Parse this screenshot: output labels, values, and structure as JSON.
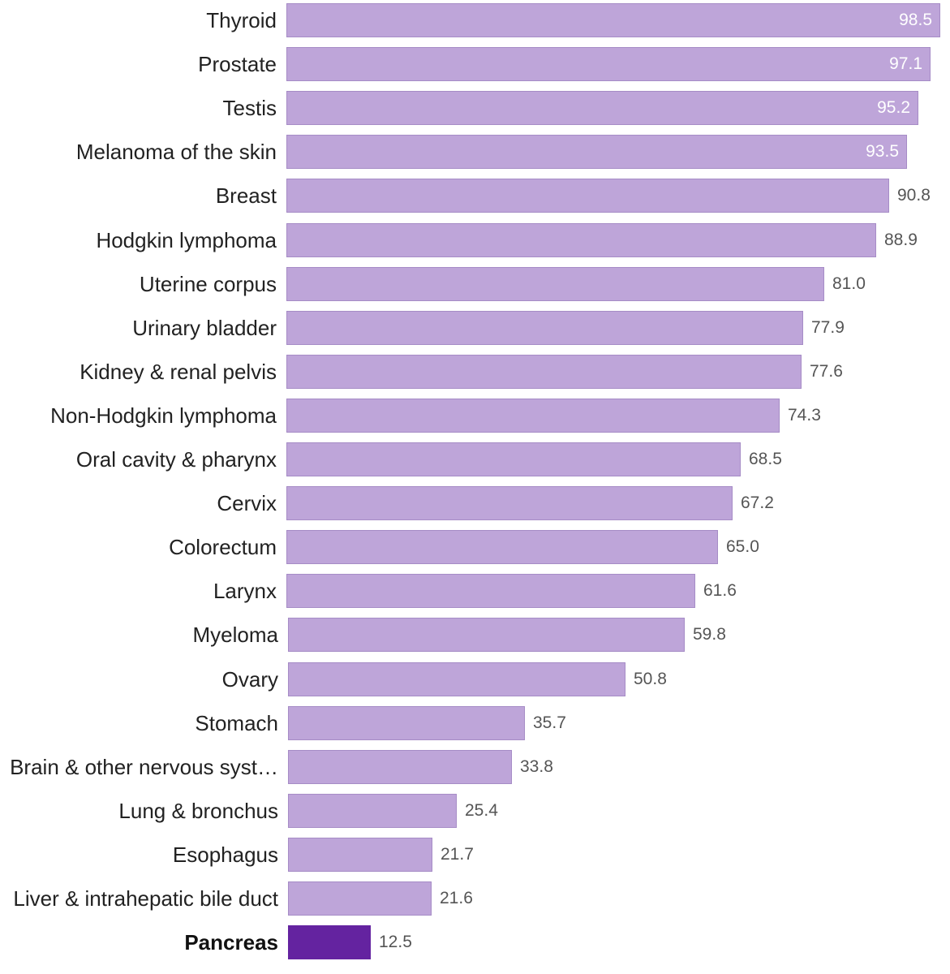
{
  "chart_data": {
    "type": "bar",
    "orientation": "horizontal",
    "categories": [
      "Thyroid",
      "Prostate",
      "Testis",
      "Melanoma of the skin",
      "Breast",
      "Hodgkin lymphoma",
      "Uterine corpus",
      "Urinary bladder",
      "Kidney & renal pelvis",
      "Non-Hodgkin lymphoma",
      "Oral cavity & pharynx",
      "Cervix",
      "Colorectum",
      "Larynx",
      "Myeloma",
      "Ovary",
      "Stomach",
      "Brain & other nervous syst…",
      "Lung & bronchus",
      "Esophagus",
      "Liver & intrahepatic bile duct",
      "Pancreas"
    ],
    "values": [
      98.5,
      97.1,
      95.2,
      93.5,
      90.8,
      88.9,
      81.0,
      77.9,
      77.6,
      74.3,
      68.5,
      67.2,
      65.0,
      61.6,
      59.8,
      50.8,
      35.7,
      33.8,
      25.4,
      21.7,
      21.6,
      12.5
    ],
    "value_labels": [
      "98.5",
      "97.1",
      "95.2",
      "93.5",
      "90.8",
      "88.9",
      "81.0",
      "77.9",
      "77.6",
      "74.3",
      "68.5",
      "67.2",
      "65.0",
      "61.6",
      "59.8",
      "50.8",
      "35.7",
      "33.8",
      "25.4",
      "21.7",
      "21.6",
      "12.5"
    ],
    "highlighted_category": "Pancreas",
    "title": "",
    "xlabel": "",
    "ylabel": "",
    "xlim": [
      0,
      100
    ],
    "grid": false,
    "legend": "none",
    "colors": {
      "bar": "#bea5d9",
      "bar_border": "#a68cc6",
      "highlight": "#6423a0"
    }
  }
}
